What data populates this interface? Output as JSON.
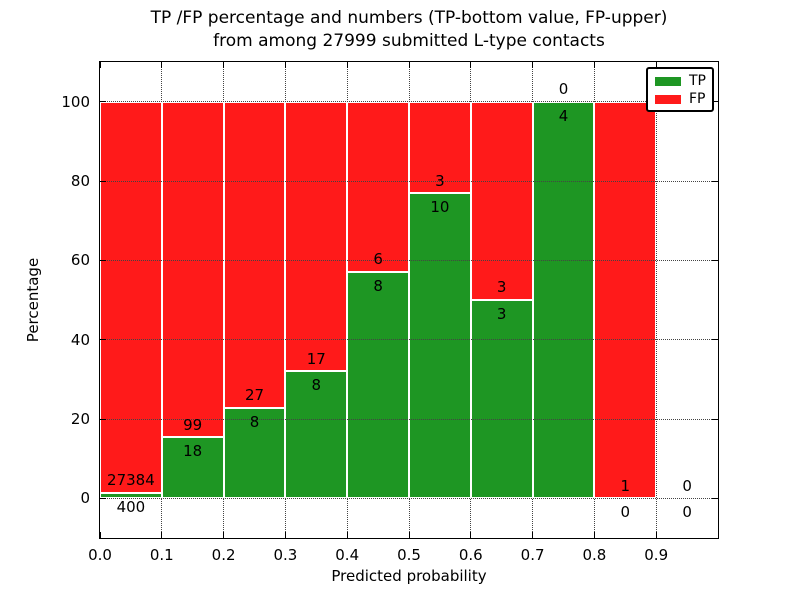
{
  "chart_data": {
    "type": "bar",
    "stacked": true,
    "title_line1": "TP /FP percentage and numbers (TP-bottom value, FP-upper)",
    "title_line2": "from among 27999 submitted L-type contacts",
    "xlabel": "Predicted probability",
    "ylabel": "Percentage",
    "total_submitted": 27999,
    "xlim": [
      0.0,
      1.0
    ],
    "ylim": [
      -10,
      110
    ],
    "grid": true,
    "x_ticks": [
      {
        "value": 0.0,
        "label": "0.0"
      },
      {
        "value": 0.1,
        "label": "0.1"
      },
      {
        "value": 0.2,
        "label": "0.2"
      },
      {
        "value": 0.3,
        "label": "0.3"
      },
      {
        "value": 0.4,
        "label": "0.4"
      },
      {
        "value": 0.5,
        "label": "0.5"
      },
      {
        "value": 0.6,
        "label": "0.6"
      },
      {
        "value": 0.7,
        "label": "0.7"
      },
      {
        "value": 0.8,
        "label": "0.8"
      },
      {
        "value": 0.9,
        "label": "0.9"
      }
    ],
    "y_ticks": [
      {
        "value": 0,
        "label": "0"
      },
      {
        "value": 20,
        "label": "20"
      },
      {
        "value": 40,
        "label": "40"
      },
      {
        "value": 60,
        "label": "60"
      },
      {
        "value": 80,
        "label": "80"
      },
      {
        "value": 100,
        "label": "100"
      }
    ],
    "colors": {
      "tp": "#1E9623",
      "fp": "#FF1A1A"
    },
    "legend": {
      "position": "upper right",
      "entries": [
        {
          "name": "TP",
          "color": "#1E9623"
        },
        {
          "name": "FP",
          "color": "#FF1A1A"
        }
      ]
    },
    "bins": [
      {
        "x0": 0.0,
        "x1": 0.1,
        "tp": 400,
        "fp": 27384,
        "tp_pct": 1.44
      },
      {
        "x0": 0.1,
        "x1": 0.2,
        "tp": 18,
        "fp": 99,
        "tp_pct": 15.38
      },
      {
        "x0": 0.2,
        "x1": 0.3,
        "tp": 8,
        "fp": 27,
        "tp_pct": 22.86
      },
      {
        "x0": 0.3,
        "x1": 0.4,
        "tp": 8,
        "fp": 17,
        "tp_pct": 32.0
      },
      {
        "x0": 0.4,
        "x1": 0.5,
        "tp": 8,
        "fp": 6,
        "tp_pct": 57.14
      },
      {
        "x0": 0.5,
        "x1": 0.6,
        "tp": 10,
        "fp": 3,
        "tp_pct": 76.92
      },
      {
        "x0": 0.6,
        "x1": 0.7,
        "tp": 3,
        "fp": 3,
        "tp_pct": 50.0
      },
      {
        "x0": 0.7,
        "x1": 0.8,
        "tp": 4,
        "fp": 0,
        "tp_pct": 100.0
      },
      {
        "x0": 0.8,
        "x1": 0.9,
        "tp": 0,
        "fp": 1,
        "tp_pct": 0.0
      },
      {
        "x0": 0.9,
        "x1": 1.0,
        "tp": 0,
        "fp": 0,
        "tp_pct": null
      }
    ]
  }
}
